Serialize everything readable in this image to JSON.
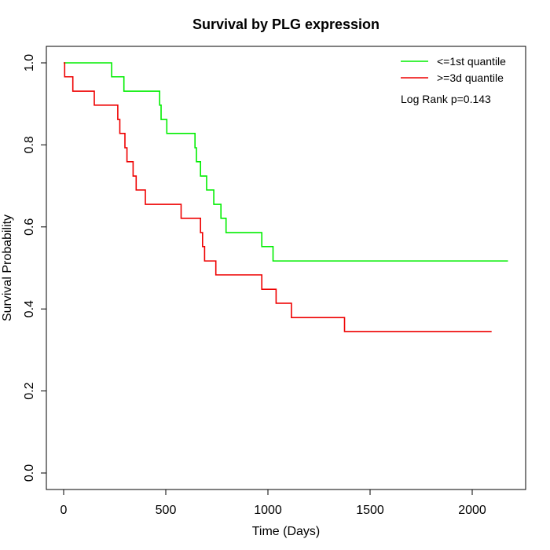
{
  "chart_data": {
    "type": "line",
    "title": "Survival by PLG expression",
    "xlabel": "Time (Days)",
    "ylabel": "Survival Probability",
    "xlim": [
      0,
      2180
    ],
    "ylim": [
      0,
      1
    ],
    "xticks": [
      0,
      500,
      1000,
      1500,
      2000
    ],
    "yticks": [
      0.0,
      0.2,
      0.4,
      0.6,
      0.8,
      1.0
    ],
    "ytick_labels": [
      "0.0",
      "0.2",
      "0.4",
      "0.6",
      "0.8",
      "1.0"
    ],
    "grid": false,
    "legend_position": "top-right",
    "annotation": "Log Rank p=0.143",
    "series": [
      {
        "name": "<=1st quantile",
        "color": "#00ee00",
        "steps": [
          [
            0,
            1.0
          ],
          [
            235,
            0.966
          ],
          [
            295,
            0.931
          ],
          [
            470,
            0.897
          ],
          [
            477,
            0.862
          ],
          [
            505,
            0.828
          ],
          [
            643,
            0.793
          ],
          [
            650,
            0.759
          ],
          [
            670,
            0.724
          ],
          [
            700,
            0.69
          ],
          [
            735,
            0.655
          ],
          [
            770,
            0.621
          ],
          [
            795,
            0.586
          ],
          [
            970,
            0.552
          ],
          [
            1025,
            0.517
          ],
          [
            2175,
            0.517
          ]
        ]
      },
      {
        "name": ">=3d quantile",
        "color": "#ee0000",
        "steps": [
          [
            0,
            1.0
          ],
          [
            5,
            0.966
          ],
          [
            45,
            0.931
          ],
          [
            150,
            0.897
          ],
          [
            265,
            0.862
          ],
          [
            275,
            0.828
          ],
          [
            300,
            0.793
          ],
          [
            310,
            0.759
          ],
          [
            340,
            0.724
          ],
          [
            355,
            0.69
          ],
          [
            400,
            0.655
          ],
          [
            575,
            0.621
          ],
          [
            670,
            0.586
          ],
          [
            680,
            0.552
          ],
          [
            690,
            0.517
          ],
          [
            745,
            0.483
          ],
          [
            970,
            0.448
          ],
          [
            1040,
            0.414
          ],
          [
            1115,
            0.379
          ],
          [
            1375,
            0.345
          ],
          [
            2095,
            0.345
          ]
        ]
      }
    ]
  }
}
